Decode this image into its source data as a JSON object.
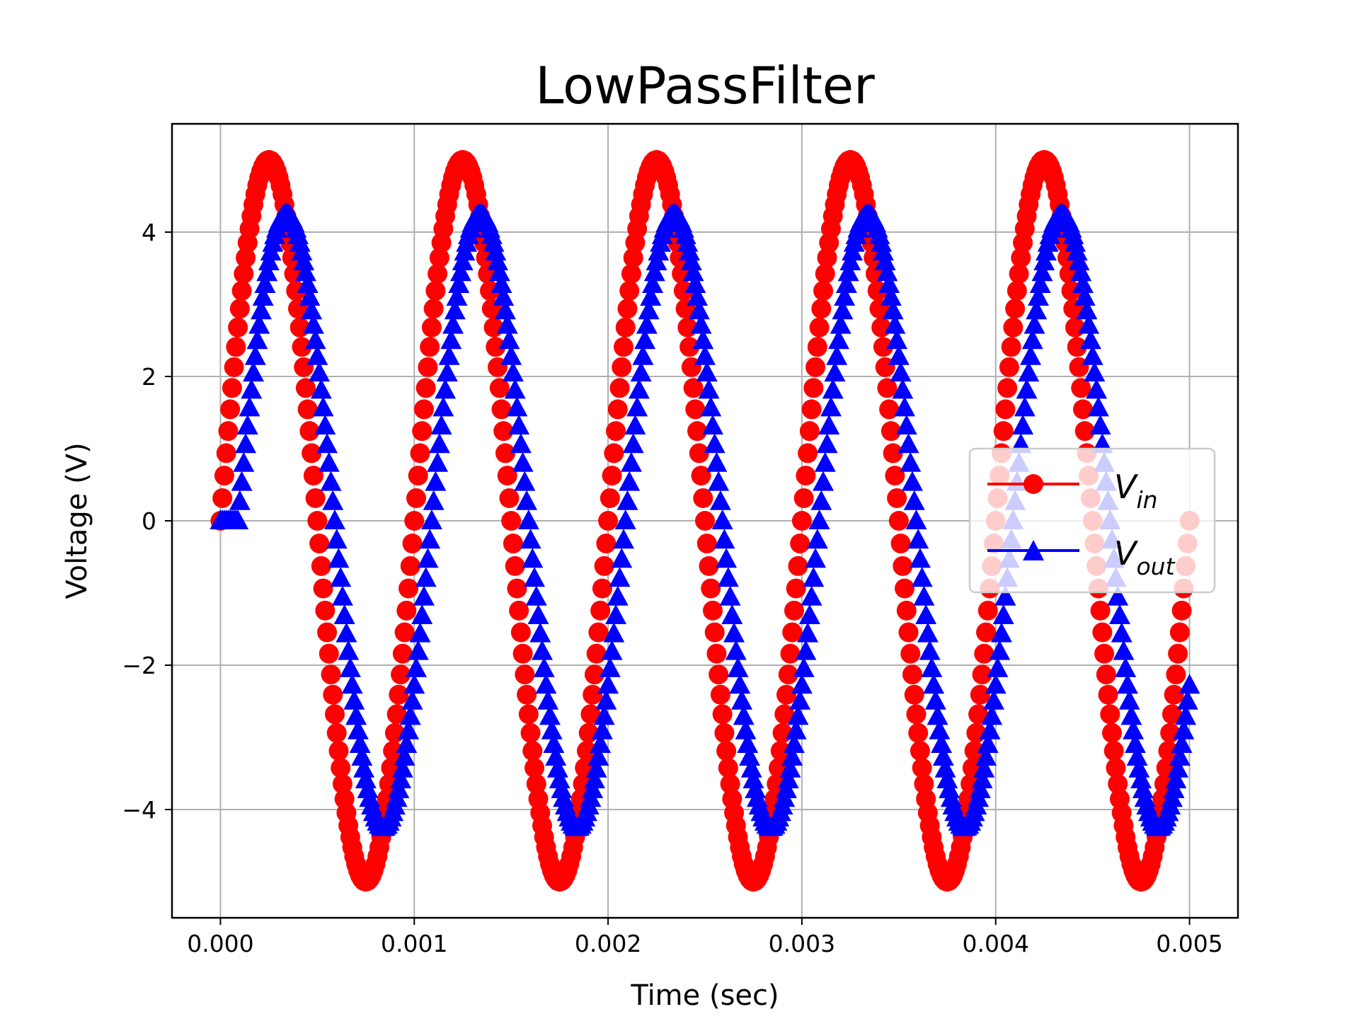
{
  "chart_data": {
    "type": "line",
    "title": "LowPassFilter",
    "xlabel": "Time (sec)",
    "ylabel": "Voltage (V)",
    "xlim": [
      -0.00025,
      0.00525
    ],
    "ylim": [
      -5.5,
      5.5
    ],
    "xticks": [
      0.0,
      0.001,
      0.002,
      0.003,
      0.004,
      0.005
    ],
    "xtick_labels": [
      "0.000",
      "0.001",
      "0.002",
      "0.003",
      "0.004",
      "0.005"
    ],
    "yticks": [
      -4,
      -2,
      0,
      2,
      4
    ],
    "ytick_labels": [
      "−4",
      "−2",
      "0",
      "2",
      "4"
    ],
    "grid": true,
    "legend_position": "center-right",
    "x": [
      0.0,
      0.00025,
      0.0005,
      0.00075,
      0.001,
      0.00125,
      0.0015,
      0.00175,
      0.002,
      0.00225,
      0.0025,
      0.00275,
      0.003,
      0.00325,
      0.0035,
      0.00375,
      0.004,
      0.00425,
      0.0045,
      0.00475,
      0.005
    ],
    "series": [
      {
        "legend_main": "V",
        "legend_sub": "in",
        "color": "#ff0000",
        "marker": "circle",
        "values": [
          0,
          5,
          0,
          -5,
          0,
          5,
          0,
          -5,
          0,
          5,
          0,
          -5,
          0,
          5,
          0,
          -5,
          0,
          5,
          0,
          -5,
          0
        ],
        "waveform": {
          "amplitude": 5,
          "frequency_hz": 1000,
          "phase_delay_s": 0,
          "start_ramp_s": 0
        }
      },
      {
        "legend_main": "V",
        "legend_sub": "out",
        "color": "#0000ff",
        "marker": "triangle",
        "values": [
          0,
          3.7,
          2.1,
          -3.0,
          -2.4,
          3.7,
          2.1,
          -3.0,
          -2.4,
          3.7,
          2.1,
          -3.0,
          -2.4,
          3.7,
          2.1,
          -3.0,
          -2.4,
          3.7,
          2.1,
          -3.0,
          -2.4
        ],
        "waveform": {
          "amplitude": 4.25,
          "frequency_hz": 1000,
          "phase_delay_s": 9e-05,
          "start_ramp_s": 6e-05
        }
      }
    ]
  }
}
